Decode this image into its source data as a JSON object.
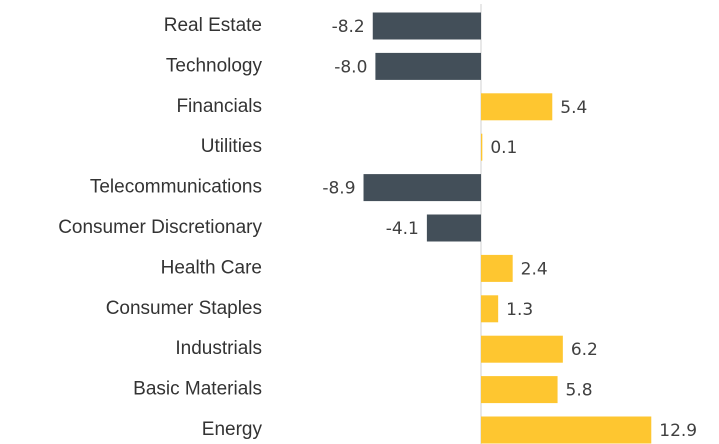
{
  "chart_data": {
    "type": "bar",
    "orientation": "horizontal",
    "categories": [
      "Real Estate",
      "Technology",
      "Financials",
      "Utilities",
      "Telecommunications",
      "Consumer Discretionary",
      "Health Care",
      "Consumer Staples",
      "Industrials",
      "Basic Materials",
      "Energy"
    ],
    "values": [
      -8.2,
      -8.0,
      5.4,
      0.1,
      -8.9,
      -4.1,
      2.4,
      1.3,
      6.2,
      5.8,
      12.9
    ],
    "value_labels": [
      "-8.2",
      "-8.0",
      "5.4",
      "0.1",
      "-8.9",
      "-4.1",
      "2.4",
      "1.3",
      "6.2",
      "5.8",
      "12.9"
    ],
    "positive_color": "#fec630",
    "negative_color": "#434f59"
  }
}
